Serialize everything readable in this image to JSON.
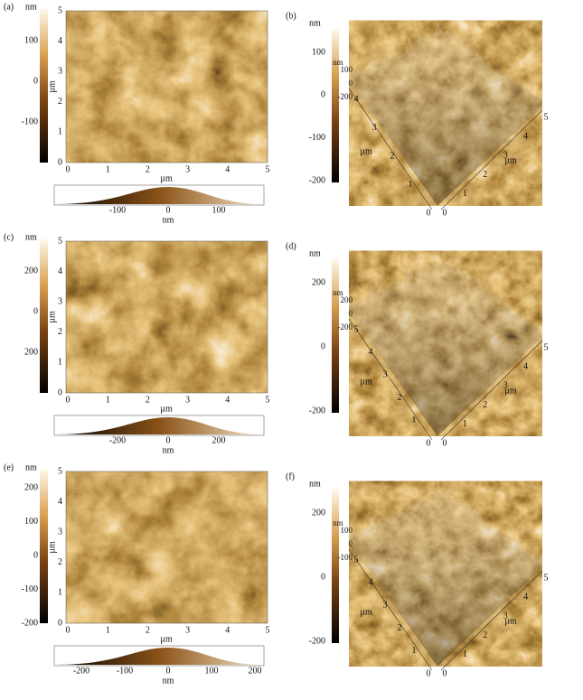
{
  "panels": [
    {
      "label": "(a)",
      "colorbar": {
        "unit": "nm",
        "ticks": [
          "100",
          "0",
          "-100"
        ]
      },
      "y_axis": {
        "label": "µm",
        "ticks": [
          "0",
          "1",
          "2",
          "3",
          "4",
          "5"
        ]
      },
      "x_axis": {
        "label": "µm",
        "ticks": [
          "0",
          "1",
          "2",
          "3",
          "4",
          "5"
        ]
      },
      "histogram": {
        "label": "nm",
        "ticks": [
          "-100",
          "0",
          "100"
        ]
      }
    },
    {
      "label": "(b)",
      "colorbar": {
        "unit": "nm",
        "ticks": [
          "100",
          "0",
          "-100",
          "-200"
        ]
      },
      "surface": {
        "z_unit": "nm",
        "z_ticks": [
          "100",
          "0",
          "-200"
        ],
        "left_label": "µm",
        "left_ticks": [
          "0",
          "1",
          "2",
          "3",
          "4"
        ],
        "right_label": "µm",
        "right_ticks": [
          "0",
          "1",
          "2",
          "3",
          "4",
          "5"
        ]
      }
    },
    {
      "label": "(c)",
      "colorbar": {
        "unit": "nm",
        "ticks": [
          "200",
          "0",
          "200"
        ]
      },
      "y_axis": {
        "label": "µm",
        "ticks": [
          "0",
          "1",
          "2",
          "3",
          "4",
          "5"
        ]
      },
      "x_axis": {
        "label": "µm",
        "ticks": [
          "0",
          "1",
          "2",
          "3",
          "4",
          "5"
        ]
      },
      "histogram": {
        "label": "nm",
        "ticks": [
          "-200",
          "0",
          "200"
        ]
      }
    },
    {
      "label": "(d)",
      "colorbar": {
        "unit": "nm",
        "ticks": [
          "200",
          "0",
          "-200"
        ]
      },
      "surface": {
        "z_unit": "nm",
        "z_ticks": [
          "200",
          "0",
          "-200"
        ],
        "left_label": "µm",
        "left_ticks": [
          "0",
          "1",
          "2",
          "3",
          "4",
          "5"
        ],
        "right_label": "µm",
        "right_ticks": [
          "0",
          "1",
          "2",
          "3",
          "4",
          "5"
        ]
      }
    },
    {
      "label": "(e)",
      "colorbar": {
        "unit": "nm",
        "ticks": [
          "200",
          "100",
          "0",
          "-100",
          "-200"
        ]
      },
      "y_axis": {
        "label": "µm",
        "ticks": [
          "0",
          "1",
          "2",
          "3",
          "4",
          "5"
        ]
      },
      "x_axis": {
        "label": "µm",
        "ticks": [
          "0",
          "1",
          "2",
          "3",
          "4",
          "5"
        ]
      },
      "histogram": {
        "label": "nm",
        "ticks": [
          "-200",
          "-100",
          "0",
          "100",
          "200"
        ]
      }
    },
    {
      "label": "(f)",
      "colorbar": {
        "unit": "nm",
        "ticks": [
          "200",
          "0",
          "-200"
        ]
      },
      "surface": {
        "z_unit": "nm",
        "z_ticks": [
          "100",
          "0",
          "-100"
        ],
        "left_label": "µm",
        "left_ticks": [
          "0",
          "1",
          "2",
          "3",
          "4",
          "5"
        ],
        "right_label": "µm",
        "right_ticks": [
          "0",
          "1",
          "2",
          "3",
          "4",
          "5"
        ]
      }
    }
  ]
}
